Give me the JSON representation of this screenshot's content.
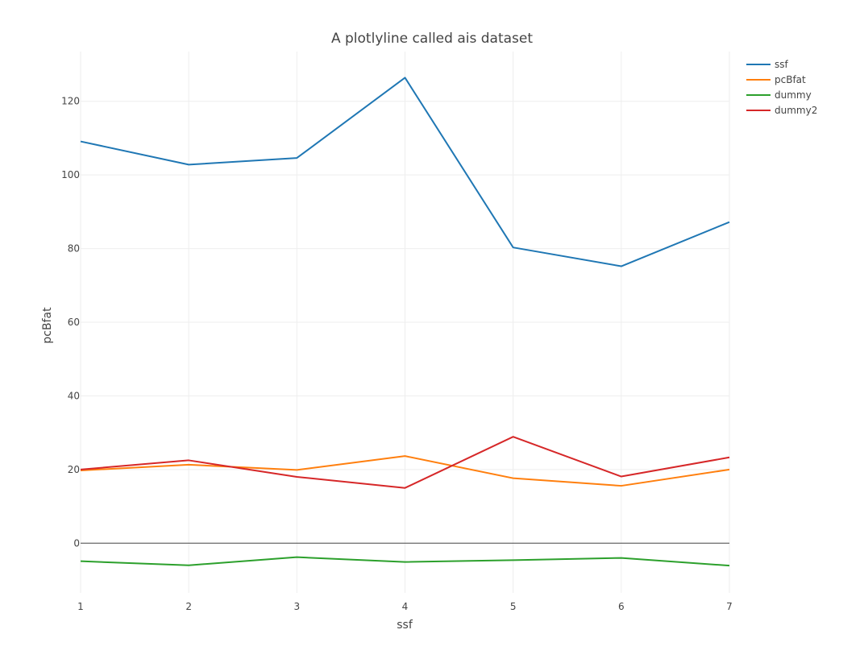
{
  "chart_data": {
    "type": "line",
    "title": "A plotlyline called ais dataset",
    "xlabel": "ssf",
    "ylabel": "pcBfat",
    "x": [
      1,
      2,
      3,
      4,
      5,
      6,
      7
    ],
    "xlim": [
      1,
      7
    ],
    "ylim": [
      -13.5,
      133.5
    ],
    "x_ticks": [
      1,
      2,
      3,
      4,
      5,
      6,
      7
    ],
    "y_ticks": [
      0,
      20,
      40,
      60,
      80,
      100,
      120
    ],
    "grid": true,
    "legend_position": "top-right",
    "series": [
      {
        "name": "ssf",
        "color": "#1f77b4",
        "values": [
          109.1,
          102.8,
          104.6,
          126.4,
          80.3,
          75.2,
          87.2
        ]
      },
      {
        "name": "pcBfat",
        "color": "#ff7f0e",
        "values": [
          19.75,
          21.3,
          19.88,
          23.66,
          17.64,
          15.58,
          19.99
        ]
      },
      {
        "name": "dummy",
        "color": "#2ca02c",
        "values": [
          -4.9,
          -6.0,
          -3.8,
          -5.1,
          -4.6,
          -4.0,
          -6.1
        ]
      },
      {
        "name": "dummy2",
        "color": "#d62728",
        "values": [
          20.0,
          22.5,
          18.0,
          15.0,
          28.9,
          18.1,
          23.3
        ]
      }
    ]
  }
}
